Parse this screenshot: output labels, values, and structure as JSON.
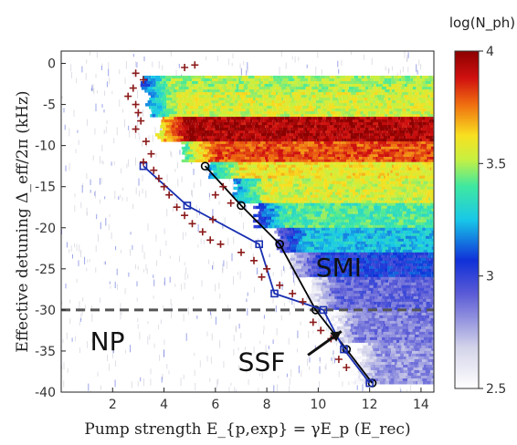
{
  "chart_data": {
    "type": "heatmap",
    "xlabel": "Pump strength E_{p,exp} = γE_p (E_rec)",
    "ylabel": "Effective detuning Δ_eff/2π (kHz)",
    "xlim": [
      0,
      14.5
    ],
    "ylim": [
      -40,
      1.5
    ],
    "xticks": [
      2,
      4,
      6,
      8,
      10,
      12,
      14
    ],
    "yticks": [
      0,
      -5,
      -10,
      -15,
      -20,
      -25,
      -30,
      -35,
      -40
    ],
    "colorbar": {
      "title": "log(N_ph)",
      "range": [
        2.5,
        4
      ],
      "ticks": [
        2.5,
        3,
        3.5,
        4
      ],
      "colormap": "white-to-jet"
    },
    "heatmap_bands": [
      {
        "y_top": -1.5,
        "y_bot": -3.5,
        "x_start": 3.2,
        "level": 3.5
      },
      {
        "y_top": -3.5,
        "y_bot": -6.5,
        "x_start": 3.4,
        "level": 3.55
      },
      {
        "y_top": -6.5,
        "y_bot": -9.5,
        "x_start": 3.8,
        "level": 3.95
      },
      {
        "y_top": -9.5,
        "y_bot": -12.0,
        "x_start": 4.8,
        "level": 3.8
      },
      {
        "y_top": -12.0,
        "y_bot": -14.0,
        "x_start": 5.8,
        "level": 3.6
      },
      {
        "y_top": -14.0,
        "y_bot": -17.0,
        "x_start": 6.8,
        "level": 3.55
      },
      {
        "y_top": -17.0,
        "y_bot": -20.0,
        "x_start": 7.6,
        "level": 3.4
      },
      {
        "y_top": -20.0,
        "y_bot": -23.0,
        "x_start": 8.4,
        "level": 3.25
      },
      {
        "y_top": -23.0,
        "y_bot": -26.0,
        "x_start": 9.0,
        "level": 3.05
      },
      {
        "y_top": -26.0,
        "y_bot": -30.0,
        "x_start": 9.6,
        "level": 2.9
      },
      {
        "y_top": -30.0,
        "y_bot": -34.0,
        "x_start": 10.4,
        "level": 2.85
      },
      {
        "y_top": -34.0,
        "y_bot": -39.0,
        "x_start": 11.2,
        "level": 2.8
      }
    ],
    "series": [
      {
        "name": "",
        "color": "#000000",
        "marker": "circle",
        "x": [
          5.6,
          7.0,
          8.5,
          9.9,
          11.1,
          12.1
        ],
        "y": [
          -12.5,
          -17.3,
          -22.0,
          -30.0,
          -34.8,
          -38.9
        ]
      },
      {
        "name": "",
        "color": "#1a2fb0",
        "marker": "square",
        "x": [
          3.2,
          4.9,
          7.7,
          8.3,
          10.2,
          11.0,
          12.0
        ],
        "y": [
          -12.5,
          -17.3,
          -22.0,
          -28.0,
          -30.0,
          -34.8,
          -38.9
        ]
      },
      {
        "name": "",
        "color": "#8b1a1a",
        "marker": "plus",
        "x": [
          2.9,
          3.2,
          2.8,
          2.6,
          2.9,
          3.0,
          3.1,
          2.9,
          3.3,
          3.5,
          3.2,
          3.6,
          3.8,
          4.0,
          4.2,
          4.5,
          4.8,
          5.1,
          5.5,
          5.8,
          6.0,
          6.3,
          6.6,
          5.9,
          6.2,
          7.0,
          7.5,
          8.0,
          7.8,
          8.5,
          9.0,
          9.4,
          9.8,
          10.1,
          10.5,
          10.8,
          11.1,
          4.8,
          5.2
        ],
        "y": [
          -1.2,
          -2.0,
          -3.0,
          -4.0,
          -5.0,
          -6.0,
          -7.0,
          -8.0,
          -9.5,
          -11.0,
          -12.0,
          -13.0,
          -14.0,
          -15.0,
          -16.0,
          -17.5,
          -18.5,
          -19.5,
          -20.5,
          -21.5,
          -16.0,
          -15.0,
          -17.0,
          -19.0,
          -22.0,
          -23.0,
          -24.0,
          -25.0,
          -26.0,
          -27.0,
          -28.0,
          -29.0,
          -31.5,
          -32.5,
          -33.5,
          -36.0,
          -37.0,
          -0.5,
          -0.2
        ]
      }
    ],
    "reference_line": {
      "y": -30,
      "style": "dashed",
      "color": "#555555"
    },
    "annotations": [
      {
        "text": "SMI",
        "x": 10.8,
        "y": -25
      },
      {
        "text": "NP",
        "x": 1.8,
        "y": -34
      },
      {
        "text": "SSF",
        "x": 7.8,
        "y": -36.5
      },
      {
        "type": "arrow",
        "from": [
          9.6,
          -35.5
        ],
        "to": [
          10.9,
          -32.6
        ]
      }
    ]
  }
}
